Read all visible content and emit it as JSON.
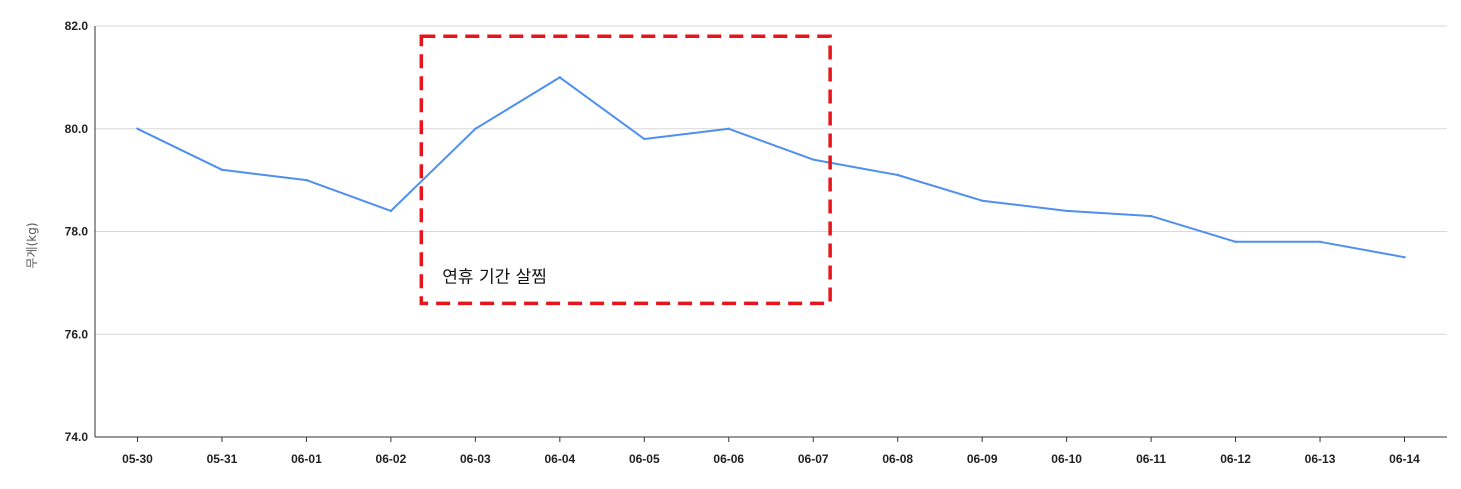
{
  "chart_data": {
    "type": "line",
    "xlabel": "",
    "ylabel": "무게(kg)",
    "ylim": [
      74.0,
      82.0
    ],
    "yticks": [
      "74.0",
      "76.0",
      "78.0",
      "80.0",
      "82.0"
    ],
    "grid": true,
    "categories": [
      "05-30",
      "05-31",
      "06-01",
      "06-02",
      "06-03",
      "06-04",
      "06-05",
      "06-06",
      "06-07",
      "06-08",
      "06-09",
      "06-10",
      "06-11",
      "06-12",
      "06-13",
      "06-14"
    ],
    "series": [
      {
        "values": [
          80.0,
          79.2,
          79.0,
          78.4,
          80.0,
          81.0,
          79.8,
          80.0,
          79.4,
          79.1,
          78.6,
          78.4,
          78.3,
          77.8,
          77.8,
          77.5
        ],
        "color": "#4f8ff0"
      }
    ],
    "annotation": {
      "text": "연휴 기간 살찜",
      "x_range": [
        "06-02",
        "06-07"
      ],
      "y_range": [
        76.6,
        81.8
      ],
      "color": "#e8141b"
    }
  }
}
